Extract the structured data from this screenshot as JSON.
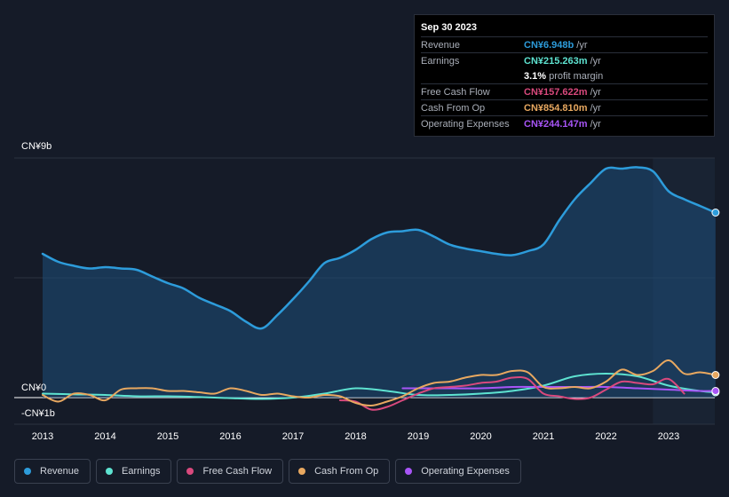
{
  "tooltip": {
    "date": "Sep 30 2023",
    "rows": [
      {
        "label": "Revenue",
        "value": "CN¥6.948b",
        "unit": "/yr",
        "color": "#2d9cdb"
      },
      {
        "label": "Earnings",
        "value": "CN¥215.263m",
        "unit": "/yr",
        "color": "#5ee3d1"
      },
      {
        "label": "",
        "value": "3.1%",
        "unit": "profit margin",
        "color": "#ffffff"
      },
      {
        "label": "Free Cash Flow",
        "value": "CN¥157.622m",
        "unit": "/yr",
        "color": "#d9497d"
      },
      {
        "label": "Cash From Op",
        "value": "CN¥854.810m",
        "unit": "/yr",
        "color": "#e8a860"
      },
      {
        "label": "Operating Expenses",
        "value": "CN¥244.147m",
        "unit": "/yr",
        "color": "#a855f7"
      }
    ]
  },
  "legend": [
    {
      "label": "Revenue",
      "color": "#2d9cdb"
    },
    {
      "label": "Earnings",
      "color": "#5ee3d1"
    },
    {
      "label": "Free Cash Flow",
      "color": "#d9497d"
    },
    {
      "label": "Cash From Op",
      "color": "#e8a860"
    },
    {
      "label": "Operating Expenses",
      "color": "#a855f7"
    }
  ],
  "chart_data": {
    "type": "area",
    "y_tick_labels": [
      "CN¥9b",
      "CN¥0",
      "-CN¥1b"
    ],
    "ylim": [
      -1,
      9
    ],
    "xlim": [
      2013,
      2023.75
    ],
    "x_tick_labels": [
      "2013",
      "2014",
      "2015",
      "2016",
      "2017",
      "2018",
      "2019",
      "2020",
      "2021",
      "2022",
      "2023"
    ],
    "x_ticks": [
      2013,
      2014,
      2015,
      2016,
      2017,
      2018,
      2019,
      2020,
      2021,
      2022,
      2023
    ],
    "grid": true,
    "forecast_band_start": 2022.75,
    "series": [
      {
        "name": "Revenue",
        "color": "#2d9cdb",
        "fill": true,
        "x": [
          2013,
          2013.25,
          2013.5,
          2013.75,
          2014,
          2014.25,
          2014.5,
          2014.75,
          2015,
          2015.25,
          2015.5,
          2015.75,
          2016,
          2016.25,
          2016.5,
          2016.75,
          2017,
          2017.25,
          2017.5,
          2017.75,
          2018,
          2018.25,
          2018.5,
          2018.75,
          2019,
          2019.25,
          2019.5,
          2019.75,
          2020,
          2020.25,
          2020.5,
          2020.75,
          2021,
          2021.25,
          2021.5,
          2021.75,
          2022,
          2022.25,
          2022.5,
          2022.75,
          2023,
          2023.25,
          2023.5,
          2023.75
        ],
        "y": [
          5.4,
          5.1,
          4.95,
          4.85,
          4.9,
          4.85,
          4.8,
          4.55,
          4.3,
          4.1,
          3.75,
          3.5,
          3.25,
          2.85,
          2.6,
          3.1,
          3.7,
          4.35,
          5.05,
          5.25,
          5.55,
          5.95,
          6.2,
          6.25,
          6.3,
          6.05,
          5.75,
          5.6,
          5.5,
          5.4,
          5.35,
          5.5,
          5.75,
          6.65,
          7.45,
          8.05,
          8.6,
          8.6,
          8.65,
          8.5,
          7.75,
          7.45,
          7.2,
          6.95
        ]
      },
      {
        "name": "Earnings",
        "color": "#5ee3d1",
        "fill": false,
        "x": [
          2013,
          2013.5,
          2014,
          2014.5,
          2015,
          2015.5,
          2016,
          2016.5,
          2017,
          2017.5,
          2018,
          2018.5,
          2019,
          2019.5,
          2020,
          2020.5,
          2021,
          2021.5,
          2022,
          2022.5,
          2023,
          2023.5,
          2023.75
        ],
        "y": [
          0.15,
          0.12,
          0.1,
          0.05,
          0.05,
          0.02,
          -0.02,
          -0.05,
          0.0,
          0.15,
          0.35,
          0.25,
          0.1,
          0.1,
          0.15,
          0.25,
          0.45,
          0.8,
          0.9,
          0.8,
          0.45,
          0.25,
          0.2
        ]
      },
      {
        "name": "Free Cash Flow",
        "color": "#d9497d",
        "fill": false,
        "x": [
          2017.75,
          2018,
          2018.25,
          2018.5,
          2018.75,
          2019,
          2019.25,
          2019.5,
          2019.75,
          2020,
          2020.25,
          2020.5,
          2020.75,
          2021,
          2021.25,
          2021.5,
          2021.75,
          2022,
          2022.25,
          2022.5,
          2022.75,
          2023,
          2023.25
        ],
        "y": [
          -0.1,
          -0.15,
          -0.45,
          -0.35,
          -0.1,
          0.15,
          0.35,
          0.4,
          0.45,
          0.55,
          0.6,
          0.75,
          0.7,
          0.15,
          0.05,
          -0.05,
          0.0,
          0.3,
          0.6,
          0.55,
          0.5,
          0.7,
          0.15
        ]
      },
      {
        "name": "Cash From Op",
        "color": "#e8a860",
        "fill": false,
        "x": [
          2013,
          2013.25,
          2013.5,
          2013.75,
          2014,
          2014.25,
          2014.5,
          2014.75,
          2015,
          2015.25,
          2015.5,
          2015.75,
          2016,
          2016.25,
          2016.5,
          2016.75,
          2017,
          2017.25,
          2017.5,
          2017.75,
          2018,
          2018.25,
          2018.5,
          2018.75,
          2019,
          2019.25,
          2019.5,
          2019.75,
          2020,
          2020.25,
          2020.5,
          2020.75,
          2021,
          2021.25,
          2021.5,
          2021.75,
          2022,
          2022.25,
          2022.5,
          2022.75,
          2023,
          2023.25,
          2023.5,
          2023.75
        ],
        "y": [
          0.1,
          -0.15,
          0.15,
          0.1,
          -0.1,
          0.3,
          0.35,
          0.35,
          0.25,
          0.25,
          0.2,
          0.15,
          0.35,
          0.25,
          0.1,
          0.15,
          0.05,
          0.0,
          0.1,
          0.05,
          -0.2,
          -0.3,
          -0.15,
          0.05,
          0.35,
          0.55,
          0.6,
          0.75,
          0.85,
          0.85,
          1.0,
          0.95,
          0.4,
          0.35,
          0.4,
          0.35,
          0.6,
          1.05,
          0.85,
          1.0,
          1.4,
          0.9,
          0.95,
          0.85
        ]
      },
      {
        "name": "Operating Expenses",
        "color": "#a855f7",
        "fill": false,
        "x": [
          2018.75,
          2019,
          2019.5,
          2020,
          2020.5,
          2021,
          2021.5,
          2022,
          2022.5,
          2023,
          2023.5,
          2023.75
        ],
        "y": [
          0.35,
          0.35,
          0.35,
          0.35,
          0.4,
          0.4,
          0.4,
          0.4,
          0.35,
          0.3,
          0.25,
          0.25
        ]
      }
    ]
  }
}
